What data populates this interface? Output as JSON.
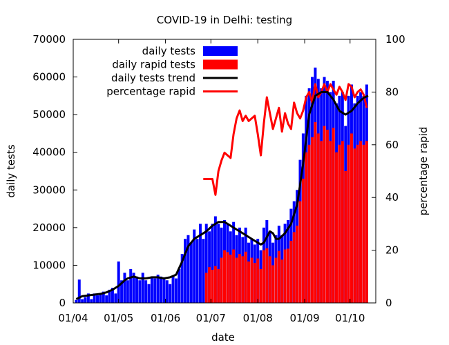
{
  "chart_data": {
    "type": "bar+line",
    "title": "COVID-19 in Delhi: testing",
    "xlabel": "date",
    "ylabel": "daily tests",
    "y2label": "percentage rapid",
    "ylim": [
      0,
      70000
    ],
    "y2lim": [
      0,
      100
    ],
    "yticks": [
      0,
      10000,
      20000,
      30000,
      40000,
      50000,
      60000,
      70000
    ],
    "y2ticks": [
      0,
      20,
      40,
      60,
      80,
      100
    ],
    "xticks": [
      {
        "label": "01/04",
        "day": 0
      },
      {
        "label": "01/05",
        "day": 30
      },
      {
        "label": "01/06",
        "day": 61
      },
      {
        "label": "01/07",
        "day": 91
      },
      {
        "label": "01/08",
        "day": 122
      },
      {
        "label": "01/09",
        "day": 153
      },
      {
        "label": "01/10",
        "day": 183
      }
    ],
    "xlim": [
      0,
      200
    ],
    "x_unit": "days since 01/04",
    "legend": [
      {
        "label": "daily tests",
        "kind": "box",
        "color": "#0000ff"
      },
      {
        "label": "daily rapid tests",
        "kind": "box",
        "color": "#ff0000"
      },
      {
        "label": "daily tests trend",
        "kind": "line",
        "color": "#000000"
      },
      {
        "label": "percentage rapid",
        "kind": "line",
        "color": "#ff0000"
      }
    ],
    "colors": {
      "daily_tests": "#0000ff",
      "rapid_tests": "#ff0000",
      "trend": "#000000",
      "pct_rapid": "#ff0000"
    },
    "series": [
      {
        "name": "daily tests",
        "type": "bar",
        "color": "#0000ff",
        "points": [
          [
            2,
            800
          ],
          [
            4,
            6200
          ],
          [
            6,
            1000
          ],
          [
            8,
            1500
          ],
          [
            10,
            2500
          ],
          [
            12,
            1000
          ],
          [
            14,
            2500
          ],
          [
            16,
            2000
          ],
          [
            18,
            2500
          ],
          [
            20,
            3000
          ],
          [
            22,
            2000
          ],
          [
            24,
            3500
          ],
          [
            26,
            4000
          ],
          [
            28,
            2500
          ],
          [
            30,
            11000
          ],
          [
            32,
            6000
          ],
          [
            34,
            8000
          ],
          [
            36,
            6000
          ],
          [
            38,
            9000
          ],
          [
            40,
            8000
          ],
          [
            42,
            7000
          ],
          [
            44,
            6000
          ],
          [
            46,
            8000
          ],
          [
            48,
            6000
          ],
          [
            50,
            5000
          ],
          [
            52,
            7000
          ],
          [
            54,
            6500
          ],
          [
            56,
            7500
          ],
          [
            58,
            7000
          ],
          [
            60,
            6500
          ],
          [
            62,
            6000
          ],
          [
            64,
            5000
          ],
          [
            66,
            7000
          ],
          [
            68,
            6500
          ],
          [
            70,
            9000
          ],
          [
            72,
            13000
          ],
          [
            74,
            17000
          ],
          [
            76,
            18000
          ],
          [
            78,
            16000
          ],
          [
            80,
            19500
          ],
          [
            82,
            17000
          ],
          [
            84,
            21000
          ],
          [
            86,
            17000
          ],
          [
            88,
            21000
          ],
          [
            90,
            19000
          ],
          [
            92,
            21000
          ],
          [
            94,
            23000
          ],
          [
            96,
            21000
          ],
          [
            98,
            20000
          ],
          [
            100,
            22000
          ],
          [
            102,
            21000
          ],
          [
            104,
            19000
          ],
          [
            106,
            21500
          ],
          [
            108,
            18000
          ],
          [
            110,
            20000
          ],
          [
            112,
            17500
          ],
          [
            114,
            20000
          ],
          [
            116,
            16000
          ],
          [
            118,
            17000
          ],
          [
            120,
            15500
          ],
          [
            122,
            17000
          ],
          [
            124,
            14000
          ],
          [
            126,
            20000
          ],
          [
            128,
            22000
          ],
          [
            130,
            19000
          ],
          [
            132,
            16000
          ],
          [
            134,
            18000
          ],
          [
            136,
            20500
          ],
          [
            138,
            18000
          ],
          [
            140,
            21000
          ],
          [
            142,
            22000
          ],
          [
            144,
            25000
          ],
          [
            146,
            27000
          ],
          [
            148,
            30000
          ],
          [
            150,
            38000
          ],
          [
            152,
            45000
          ],
          [
            154,
            55000
          ],
          [
            156,
            57000
          ],
          [
            158,
            60000
          ],
          [
            160,
            62500
          ],
          [
            162,
            59500
          ],
          [
            164,
            57000
          ],
          [
            166,
            60000
          ],
          [
            168,
            59000
          ],
          [
            170,
            56000
          ],
          [
            172,
            59000
          ],
          [
            174,
            53000
          ],
          [
            176,
            55000
          ],
          [
            178,
            56000
          ],
          [
            180,
            47000
          ],
          [
            182,
            55000
          ],
          [
            184,
            58000
          ],
          [
            186,
            53000
          ],
          [
            188,
            55000
          ],
          [
            190,
            56000
          ],
          [
            192,
            55000
          ],
          [
            194,
            58000
          ]
        ]
      },
      {
        "name": "daily rapid tests",
        "type": "bar",
        "color": "#ff0000",
        "points": [
          [
            88,
            8000
          ],
          [
            90,
            9500
          ],
          [
            92,
            8800
          ],
          [
            94,
            9800
          ],
          [
            96,
            9000
          ],
          [
            98,
            12000
          ],
          [
            100,
            14000
          ],
          [
            102,
            13500
          ],
          [
            104,
            12800
          ],
          [
            106,
            14200
          ],
          [
            108,
            12000
          ],
          [
            110,
            13000
          ],
          [
            112,
            12400
          ],
          [
            114,
            13600
          ],
          [
            116,
            11000
          ],
          [
            118,
            12000
          ],
          [
            120,
            10600
          ],
          [
            122,
            11800
          ],
          [
            124,
            9000
          ],
          [
            126,
            14000
          ],
          [
            128,
            14500
          ],
          [
            130,
            12400
          ],
          [
            132,
            10000
          ],
          [
            134,
            12000
          ],
          [
            136,
            13800
          ],
          [
            138,
            11500
          ],
          [
            140,
            14200
          ],
          [
            142,
            14400
          ],
          [
            144,
            16500
          ],
          [
            146,
            18800
          ],
          [
            148,
            20500
          ],
          [
            150,
            27000
          ],
          [
            152,
            33000
          ],
          [
            154,
            40000
          ],
          [
            156,
            42000
          ],
          [
            158,
            44000
          ],
          [
            160,
            48000
          ],
          [
            162,
            45000
          ],
          [
            164,
            43000
          ],
          [
            166,
            47000
          ],
          [
            168,
            46000
          ],
          [
            170,
            43000
          ],
          [
            172,
            46500
          ],
          [
            174,
            40000
          ],
          [
            176,
            42000
          ],
          [
            178,
            43000
          ],
          [
            180,
            35000
          ],
          [
            182,
            42000
          ],
          [
            184,
            45000
          ],
          [
            186,
            41000
          ],
          [
            188,
            42000
          ],
          [
            190,
            43000
          ],
          [
            192,
            42000
          ],
          [
            194,
            43000
          ]
        ]
      },
      {
        "name": "daily tests trend",
        "type": "line",
        "color": "#000000",
        "points": [
          [
            2,
            1000
          ],
          [
            6,
            1800
          ],
          [
            10,
            2000
          ],
          [
            14,
            2200
          ],
          [
            18,
            2400
          ],
          [
            22,
            2800
          ],
          [
            26,
            3500
          ],
          [
            30,
            4500
          ],
          [
            34,
            6000
          ],
          [
            36,
            6500
          ],
          [
            40,
            7000
          ],
          [
            44,
            6500
          ],
          [
            48,
            6500
          ],
          [
            52,
            6800
          ],
          [
            56,
            6800
          ],
          [
            60,
            6500
          ],
          [
            64,
            6800
          ],
          [
            68,
            7500
          ],
          [
            72,
            11000
          ],
          [
            76,
            15000
          ],
          [
            80,
            17000
          ],
          [
            84,
            18000
          ],
          [
            88,
            19000
          ],
          [
            92,
            20500
          ],
          [
            96,
            21500
          ],
          [
            100,
            21500
          ],
          [
            104,
            20500
          ],
          [
            108,
            19500
          ],
          [
            112,
            18500
          ],
          [
            116,
            17500
          ],
          [
            120,
            16500
          ],
          [
            124,
            15500
          ],
          [
            126,
            16000
          ],
          [
            128,
            17500
          ],
          [
            130,
            19000
          ],
          [
            132,
            18500
          ],
          [
            134,
            17000
          ],
          [
            136,
            17000
          ],
          [
            140,
            18500
          ],
          [
            144,
            21000
          ],
          [
            148,
            26000
          ],
          [
            152,
            37000
          ],
          [
            156,
            50000
          ],
          [
            160,
            55000
          ],
          [
            164,
            56000
          ],
          [
            168,
            56000
          ],
          [
            172,
            54000
          ],
          [
            176,
            51000
          ],
          [
            180,
            50000
          ],
          [
            184,
            51000
          ],
          [
            188,
            53000
          ],
          [
            192,
            54500
          ],
          [
            195,
            55000
          ]
        ]
      },
      {
        "name": "percentage rapid",
        "type": "line",
        "axis": "right",
        "color": "#ff0000",
        "points": [
          [
            86,
            47
          ],
          [
            88,
            47
          ],
          [
            92,
            47
          ],
          [
            94,
            41
          ],
          [
            96,
            50
          ],
          [
            98,
            54
          ],
          [
            100,
            57
          ],
          [
            102,
            56
          ],
          [
            104,
            55
          ],
          [
            106,
            64
          ],
          [
            108,
            70
          ],
          [
            110,
            73
          ],
          [
            112,
            69
          ],
          [
            114,
            71
          ],
          [
            116,
            69
          ],
          [
            118,
            70
          ],
          [
            120,
            71
          ],
          [
            122,
            64
          ],
          [
            124,
            56
          ],
          [
            126,
            68
          ],
          [
            128,
            78
          ],
          [
            130,
            72
          ],
          [
            132,
            66
          ],
          [
            134,
            70
          ],
          [
            136,
            74
          ],
          [
            138,
            65
          ],
          [
            140,
            72
          ],
          [
            142,
            68
          ],
          [
            144,
            66
          ],
          [
            146,
            76
          ],
          [
            148,
            72
          ],
          [
            150,
            70
          ],
          [
            152,
            73
          ],
          [
            154,
            78
          ],
          [
            156,
            80
          ],
          [
            158,
            76
          ],
          [
            160,
            83
          ],
          [
            162,
            78
          ],
          [
            164,
            80
          ],
          [
            166,
            83
          ],
          [
            168,
            80
          ],
          [
            170,
            83
          ],
          [
            172,
            81
          ],
          [
            174,
            79
          ],
          [
            176,
            82
          ],
          [
            178,
            80
          ],
          [
            180,
            77
          ],
          [
            182,
            83
          ],
          [
            184,
            82
          ],
          [
            186,
            78
          ],
          [
            188,
            80
          ],
          [
            190,
            81
          ],
          [
            192,
            79
          ],
          [
            194,
            74
          ]
        ]
      }
    ]
  }
}
